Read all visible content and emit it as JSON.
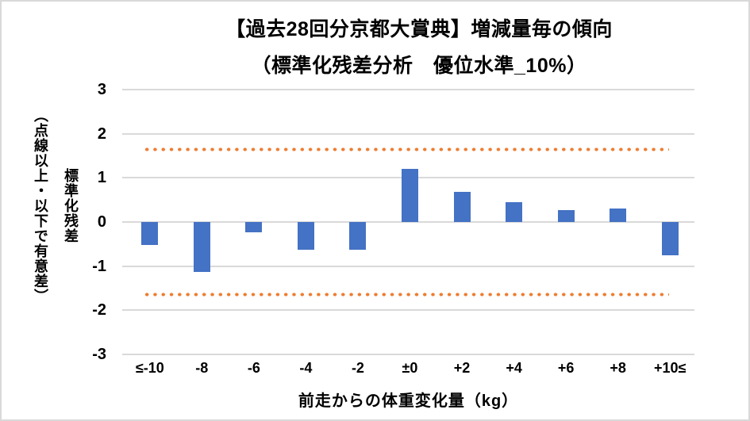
{
  "title": {
    "line1": "【過去28回分京都大賞典】増減量毎の傾向",
    "line2": "（標準化残差分析　優位水準_10%）"
  },
  "y_axis_title": {
    "line1": "標準化残差",
    "line2": "（点線以上・以下で有意差）"
  },
  "x_axis_title": "前走からの体重変化量（kg）",
  "chart_data": {
    "type": "bar",
    "title": "【過去28回分京都大賞典】増減量毎の傾向（標準化残差分析　優位水準_10%）",
    "categories": [
      "≤-10",
      "-8",
      "-6",
      "-4",
      "-2",
      "±0",
      "+2",
      "+4",
      "+6",
      "+8",
      "+10≤"
    ],
    "values": [
      -0.52,
      -1.13,
      -0.24,
      -0.63,
      -0.62,
      1.2,
      0.69,
      0.45,
      0.27,
      0.3,
      -0.76
    ],
    "xlabel": "前走からの体重変化量（kg）",
    "ylabel": "標準化残差（点線以上・以下で有意差）",
    "ylim": [
      -3,
      3
    ],
    "yticks": [
      3,
      2,
      1,
      0,
      -1,
      -2,
      -3
    ],
    "significance_thresholds": [
      1.645,
      -1.645
    ],
    "grid": true,
    "legend": false,
    "colors": {
      "bar": "#4472C4",
      "threshold_dotted": "#ED7D31",
      "gridline": "#D9D9D9",
      "text": "#000000",
      "background": "#FFFFFF",
      "border": "#D9D9D9"
    }
  }
}
